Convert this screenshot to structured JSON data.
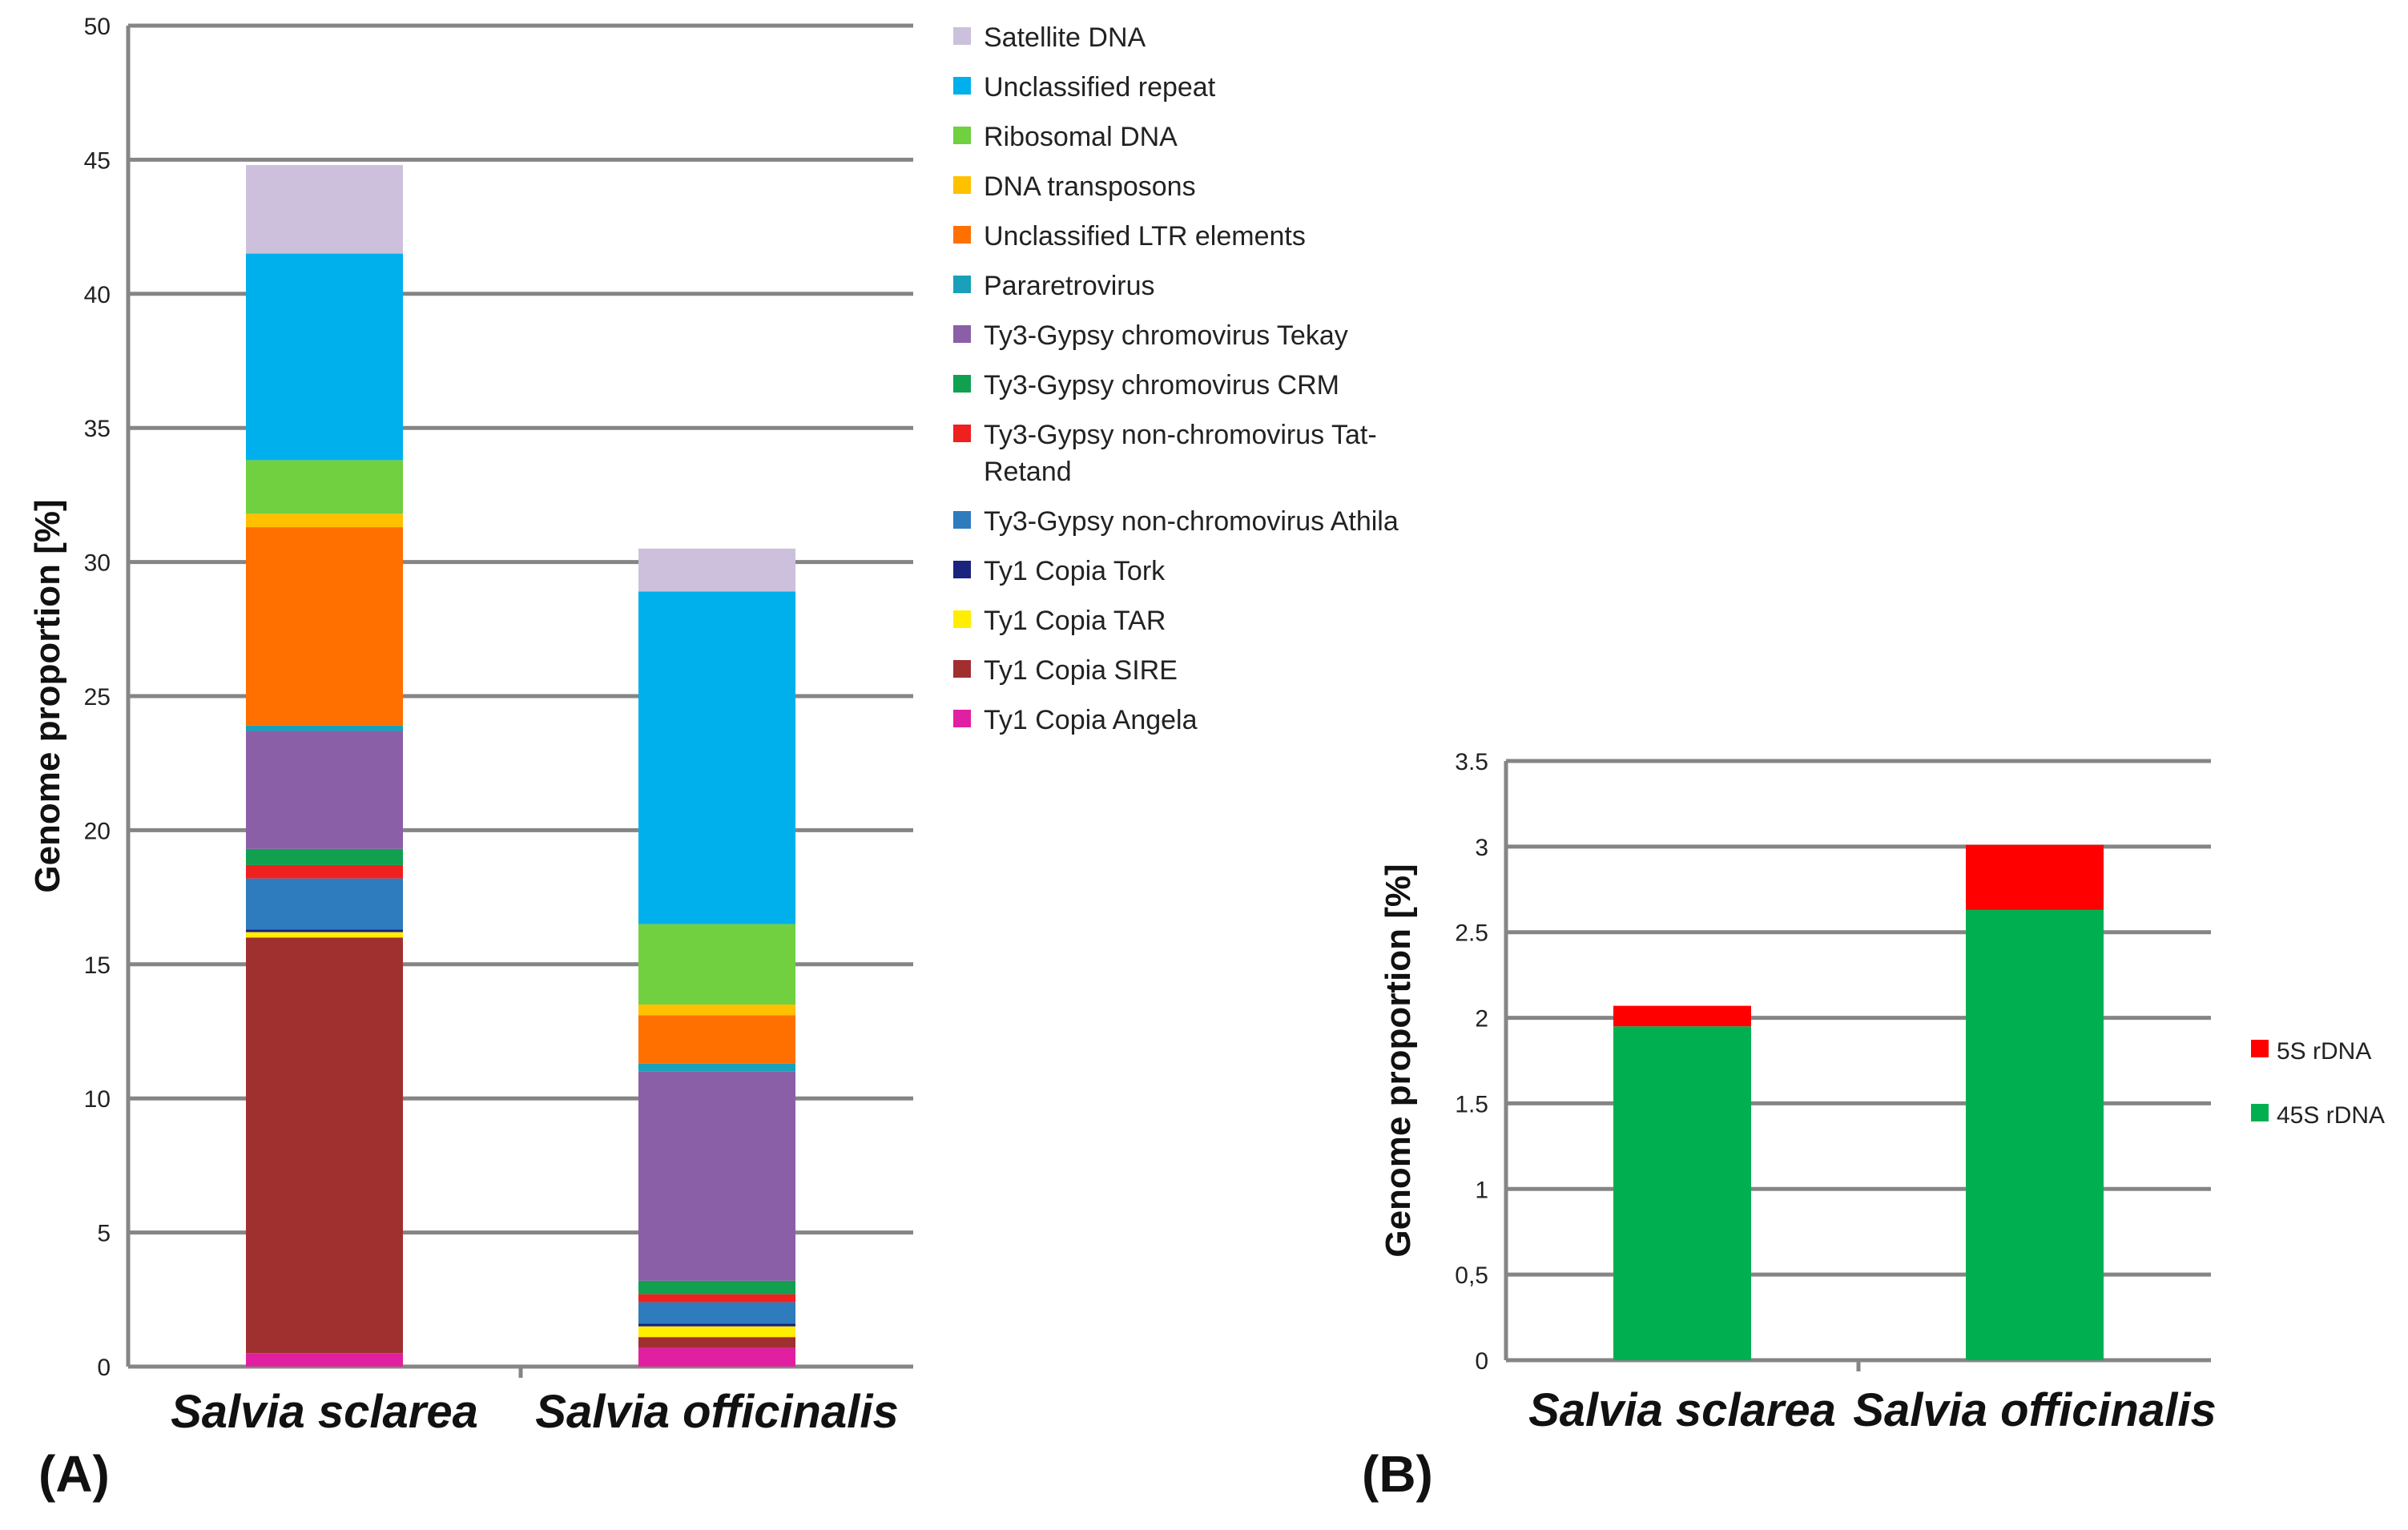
{
  "chart_data": [
    {
      "type": "bar",
      "stacked": true,
      "panel_label": "(A)",
      "ylabel": "Genome proportion [%]",
      "ylim": [
        0,
        50
      ],
      "yticks": [
        0,
        5,
        10,
        15,
        20,
        25,
        30,
        35,
        40,
        45,
        50
      ],
      "grid": true,
      "categories": [
        "Salvia sclarea",
        "Salvia officinalis"
      ],
      "series": [
        {
          "name": "Ty1 Copia Angela",
          "color": "#e020a0",
          "values": [
            0.5,
            0.7
          ]
        },
        {
          "name": "Ty1 Copia SIRE",
          "color": "#a03030",
          "values": [
            15.5,
            0.4
          ]
        },
        {
          "name": "Ty1 Copia TAR",
          "color": "#ffee00",
          "values": [
            0.2,
            0.4
          ]
        },
        {
          "name": "Ty1 Copia Tork",
          "color": "#1a237e",
          "values": [
            0.1,
            0.1
          ]
        },
        {
          "name": "Ty3-Gypsy non-chromovirus Athila",
          "color": "#2e7bbd",
          "values": [
            1.9,
            0.8
          ]
        },
        {
          "name": "Ty3-Gypsy non-chromovirus Tat-Retand",
          "lines": [
            "Ty3-Gypsy non-chromovirus Tat-",
            "Retand"
          ],
          "color": "#ee2020",
          "values": [
            0.5,
            0.3
          ]
        },
        {
          "name": "Ty3-Gypsy chromovirus CRM",
          "color": "#10a050",
          "values": [
            0.6,
            0.5
          ]
        },
        {
          "name": "Ty3-Gypsy chromovirus Tekay",
          "color": "#8a5fa8",
          "values": [
            4.4,
            7.8
          ]
        },
        {
          "name": "Pararetrovirus",
          "color": "#1aa0b8",
          "values": [
            0.2,
            0.3
          ]
        },
        {
          "name": "Unclassified  LTR elements",
          "color": "#ff7000",
          "values": [
            7.4,
            1.8
          ]
        },
        {
          "name": "DNA transposons",
          "color": "#ffc000",
          "values": [
            0.5,
            0.4
          ]
        },
        {
          "name": "Ribosomal DNA",
          "color": "#70d040",
          "values": [
            2.0,
            3.0
          ]
        },
        {
          "name": "Unclassified repeat",
          "color": "#00b0ec",
          "values": [
            7.7,
            12.4
          ]
        },
        {
          "name": "Satellite DNA",
          "color": "#ccc0dc",
          "values": [
            3.3,
            1.6
          ]
        }
      ]
    },
    {
      "type": "bar",
      "stacked": true,
      "panel_label": "(B)",
      "ylabel": "Genome proportion [%]",
      "ylim": [
        0,
        3.5
      ],
      "yticks": [
        "0",
        "0,5",
        "1",
        "1.5",
        "2",
        "2.5",
        "3",
        "3.5"
      ],
      "yticks_values": [
        0,
        0.5,
        1,
        1.5,
        2,
        2.5,
        3,
        3.5
      ],
      "grid": true,
      "categories": [
        "Salvia sclarea",
        "Salvia officinalis"
      ],
      "series": [
        {
          "name": "45S rDNA",
          "color": "#00b050",
          "values": [
            1.95,
            2.63
          ]
        },
        {
          "name": "5S rDNA",
          "color": "#ff0000",
          "values": [
            0.12,
            0.38
          ]
        }
      ]
    }
  ]
}
